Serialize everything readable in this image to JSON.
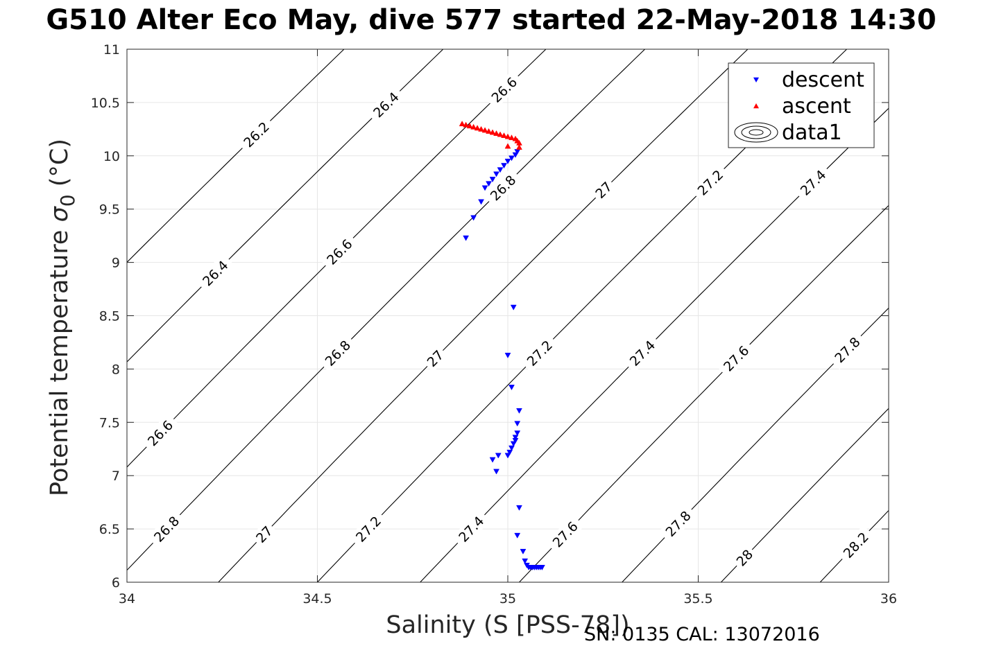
{
  "chart_data": {
    "type": "scatter",
    "title": "G510 Alter Eco May, dive 577 started 22-May-2018 14:30",
    "xlabel": "Salinity (S [PSS-78])",
    "ylabel_prefix": "Potential temperature ",
    "ylabel_symbol": "σ",
    "ylabel_subscript": "0",
    "ylabel_suffix": " (°C)",
    "xlim": [
      34,
      36
    ],
    "ylim": [
      6,
      11
    ],
    "xticks": [
      "34",
      "34.5",
      "35",
      "35.5",
      "36"
    ],
    "yticks": [
      "6",
      "6.5",
      "7",
      "7.5",
      "8",
      "8.5",
      "9",
      "9.5",
      "10",
      "10.5",
      "11"
    ],
    "grid": true,
    "legend_position": "top-right",
    "legend": [
      "descent",
      "ascent",
      "data1"
    ],
    "series": [
      {
        "name": "descent",
        "marker": "triangle-down",
        "color": "#0000ff",
        "points": [
          [
            34.89,
            9.23
          ],
          [
            34.91,
            9.42
          ],
          [
            34.93,
            9.57
          ],
          [
            34.94,
            9.7
          ],
          [
            34.95,
            9.74
          ],
          [
            34.96,
            9.78
          ],
          [
            34.97,
            9.83
          ],
          [
            34.98,
            9.87
          ],
          [
            34.99,
            9.91
          ],
          [
            35.0,
            9.95
          ],
          [
            35.01,
            9.98
          ],
          [
            35.02,
            10.01
          ],
          [
            35.025,
            10.04
          ],
          [
            35.015,
            8.58
          ],
          [
            35.0,
            8.13
          ],
          [
            35.01,
            7.83
          ],
          [
            35.03,
            7.61
          ],
          [
            35.025,
            7.49
          ],
          [
            35.025,
            7.4
          ],
          [
            35.02,
            7.36
          ],
          [
            35.02,
            7.33
          ],
          [
            35.015,
            7.3
          ],
          [
            35.01,
            7.26
          ],
          [
            35.005,
            7.22
          ],
          [
            35.0,
            7.19
          ],
          [
            34.96,
            7.15
          ],
          [
            34.975,
            7.19
          ],
          [
            34.97,
            7.04
          ],
          [
            35.03,
            6.7
          ],
          [
            35.025,
            6.44
          ],
          [
            35.04,
            6.29
          ],
          [
            35.045,
            6.2
          ],
          [
            35.05,
            6.16
          ],
          [
            35.055,
            6.14
          ],
          [
            35.06,
            6.14
          ],
          [
            35.065,
            6.14
          ],
          [
            35.07,
            6.14
          ],
          [
            35.075,
            6.14
          ],
          [
            35.08,
            6.14
          ],
          [
            35.085,
            6.14
          ],
          [
            35.09,
            6.14
          ]
        ]
      },
      {
        "name": "ascent",
        "marker": "triangle-up",
        "color": "#ff0000",
        "points": [
          [
            34.88,
            10.3
          ],
          [
            34.89,
            10.29
          ],
          [
            34.9,
            10.28
          ],
          [
            34.91,
            10.27
          ],
          [
            34.92,
            10.26
          ],
          [
            34.93,
            10.25
          ],
          [
            34.94,
            10.24
          ],
          [
            34.95,
            10.23
          ],
          [
            34.96,
            10.22
          ],
          [
            34.97,
            10.21
          ],
          [
            34.98,
            10.2
          ],
          [
            34.99,
            10.19
          ],
          [
            35.0,
            10.18
          ],
          [
            35.01,
            10.17
          ],
          [
            35.02,
            10.16
          ],
          [
            35.025,
            10.14
          ],
          [
            35.03,
            10.12
          ],
          [
            35.0,
            10.09
          ],
          [
            35.03,
            10.08
          ]
        ]
      }
    ],
    "contours": {
      "name": "data1",
      "color": "#000000",
      "levels": [
        {
          "level": 26.2,
          "x_at_ymin": 33.18,
          "x_at_ymax": 34.57,
          "labels": [
            {
              "text": "26.2",
              "y": 10.2
            }
          ]
        },
        {
          "level": 26.4,
          "x_at_ymin": 33.44,
          "x_at_ymax": 34.83,
          "labels": [
            {
              "text": "26.4",
              "y": 8.9
            },
            {
              "text": "26.4",
              "y": 10.48
            }
          ]
        },
        {
          "level": 26.6,
          "x_at_ymin": 33.71,
          "x_at_ymax": 35.1,
          "labels": [
            {
              "text": "26.6",
              "y": 7.4
            },
            {
              "text": "26.6",
              "y": 9.1
            },
            {
              "text": "26.6",
              "y": 10.62
            }
          ]
        },
        {
          "level": 26.8,
          "x_at_ymin": 33.97,
          "x_at_ymax": 35.36,
          "labels": [
            {
              "text": "26.8",
              "y": 6.5
            },
            {
              "text": "26.8",
              "y": 8.15
            },
            {
              "text": "26.8",
              "y": 9.7
            }
          ]
        },
        {
          "level": 27.0,
          "x_at_ymin": 34.24,
          "x_at_ymax": 35.63,
          "labels": [
            {
              "text": "27",
              "y": 6.45
            },
            {
              "text": "27",
              "y": 8.1
            },
            {
              "text": "27",
              "y": 9.68
            }
          ]
        },
        {
          "level": 27.2,
          "x_at_ymin": 34.5,
          "x_at_ymax": 35.89,
          "labels": [
            {
              "text": "27.2",
              "y": 6.5
            },
            {
              "text": "27.2",
              "y": 8.15
            },
            {
              "text": "27.2",
              "y": 9.75
            }
          ]
        },
        {
          "level": 27.4,
          "x_at_ymin": 34.77,
          "x_at_ymax": 36.16,
          "labels": [
            {
              "text": "27.4",
              "y": 6.5
            },
            {
              "text": "27.4",
              "y": 8.15
            },
            {
              "text": "27.4",
              "y": 9.75
            }
          ]
        },
        {
          "level": 27.6,
          "x_at_ymin": 35.03,
          "x_at_ymax": 36.42,
          "labels": [
            {
              "text": "27.6",
              "y": 6.45
            },
            {
              "text": "27.6",
              "y": 8.1
            },
            {
              "text": "27.6",
              "y": 9.7
            }
          ]
        },
        {
          "level": 27.8,
          "x_at_ymin": 35.3,
          "x_at_ymax": 36.69,
          "labels": [
            {
              "text": "27.8",
              "y": 6.55
            },
            {
              "text": "27.8",
              "y": 8.18
            }
          ]
        },
        {
          "level": 28.0,
          "x_at_ymin": 35.56,
          "x_at_ymax": 36.95,
          "labels": [
            {
              "text": "28",
              "y": 6.23
            },
            {
              "text": "28",
              "y": 7.9
            }
          ]
        },
        {
          "level": 28.2,
          "x_at_ymin": 35.82,
          "x_at_ymax": 37.21,
          "labels": [
            {
              "text": "28.2",
              "y": 6.35
            }
          ]
        }
      ]
    }
  },
  "footer": {
    "text": "SN: 0135  CAL: 13072016"
  }
}
